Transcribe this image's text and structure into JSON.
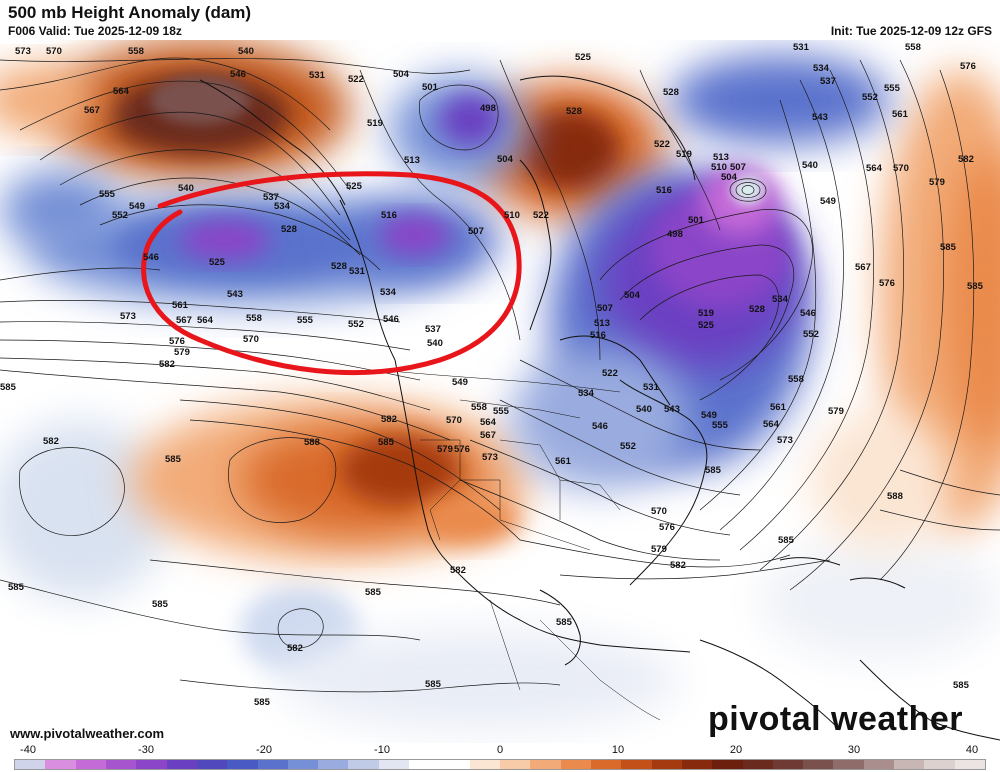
{
  "header": {
    "title": "500 mb Height Anomaly (dam)",
    "valid": "F006 Valid: Tue 2025-12-09 18z",
    "init": "Init: Tue 2025-12-09 12z GFS"
  },
  "footer": {
    "website": "www.pivotalweather.com",
    "logo": "pivotal weather"
  },
  "colorbar": {
    "ticks": [
      "-40",
      "-30",
      "-20",
      "-10",
      "0",
      "10",
      "20",
      "30",
      "40"
    ],
    "colors": [
      "#cfd4ea",
      "#d98ee0",
      "#c46bd8",
      "#a655cf",
      "#8a45c8",
      "#6a3fc2",
      "#5248bd",
      "#4a5ac4",
      "#5a72cc",
      "#7590d6",
      "#9aacdf",
      "#c0cbe8",
      "#e2e6f2",
      "#ffffff",
      "#ffffff",
      "#fbe5d3",
      "#f7cba8",
      "#f2ab78",
      "#ea8a4c",
      "#d96a2c",
      "#c25018",
      "#a53a10",
      "#87290c",
      "#6d1f0e",
      "#6b2a1e",
      "#6e3a33",
      "#7a514d",
      "#8f6c6a",
      "#aa8e8d",
      "#c8b6b5",
      "#ddd1d0",
      "#ebe4e3"
    ]
  },
  "contour_labels": [
    {
      "text": "573"
    },
    {
      "text": "570"
    },
    {
      "text": "558"
    },
    {
      "text": "540"
    },
    {
      "text": "546"
    },
    {
      "text": "531"
    },
    {
      "text": "522"
    },
    {
      "text": "504"
    },
    {
      "text": "501"
    },
    {
      "text": "498"
    },
    {
      "text": "525"
    },
    {
      "text": "528"
    },
    {
      "text": "531"
    },
    {
      "text": "534"
    },
    {
      "text": "537"
    },
    {
      "text": "558"
    },
    {
      "text": "576"
    },
    {
      "text": "564"
    },
    {
      "text": "567"
    },
    {
      "text": "519"
    },
    {
      "text": "513"
    },
    {
      "text": "504"
    },
    {
      "text": "528"
    },
    {
      "text": "522"
    },
    {
      "text": "519"
    },
    {
      "text": "513"
    },
    {
      "text": "510"
    },
    {
      "text": "507"
    },
    {
      "text": "504"
    },
    {
      "text": "540"
    },
    {
      "text": "552"
    },
    {
      "text": "555"
    },
    {
      "text": "561"
    },
    {
      "text": "543"
    },
    {
      "text": "564"
    },
    {
      "text": "570"
    },
    {
      "text": "582"
    },
    {
      "text": "579"
    },
    {
      "text": "555"
    },
    {
      "text": "552"
    },
    {
      "text": "549"
    },
    {
      "text": "540"
    },
    {
      "text": "537"
    },
    {
      "text": "534"
    },
    {
      "text": "525"
    },
    {
      "text": "528"
    },
    {
      "text": "516"
    },
    {
      "text": "507"
    },
    {
      "text": "510"
    },
    {
      "text": "522"
    },
    {
      "text": "516"
    },
    {
      "text": "501"
    },
    {
      "text": "498"
    },
    {
      "text": "549"
    },
    {
      "text": "585"
    },
    {
      "text": "546"
    },
    {
      "text": "525"
    },
    {
      "text": "528"
    },
    {
      "text": "531"
    },
    {
      "text": "534"
    },
    {
      "text": "543"
    },
    {
      "text": "561"
    },
    {
      "text": "567"
    },
    {
      "text": "564"
    },
    {
      "text": "558"
    },
    {
      "text": "555"
    },
    {
      "text": "552"
    },
    {
      "text": "546"
    },
    {
      "text": "537"
    },
    {
      "text": "540"
    },
    {
      "text": "573"
    },
    {
      "text": "576"
    },
    {
      "text": "579"
    },
    {
      "text": "570"
    },
    {
      "text": "582"
    },
    {
      "text": "504"
    },
    {
      "text": "507"
    },
    {
      "text": "513"
    },
    {
      "text": "516"
    },
    {
      "text": "519"
    },
    {
      "text": "525"
    },
    {
      "text": "528"
    },
    {
      "text": "534"
    },
    {
      "text": "546"
    },
    {
      "text": "552"
    },
    {
      "text": "567"
    },
    {
      "text": "576"
    },
    {
      "text": "585"
    },
    {
      "text": "585"
    },
    {
      "text": "549"
    },
    {
      "text": "558"
    },
    {
      "text": "555"
    },
    {
      "text": "564"
    },
    {
      "text": "567"
    },
    {
      "text": "570"
    },
    {
      "text": "573"
    },
    {
      "text": "576"
    },
    {
      "text": "579"
    },
    {
      "text": "582"
    },
    {
      "text": "585"
    },
    {
      "text": "588"
    },
    {
      "text": "582"
    },
    {
      "text": "585"
    },
    {
      "text": "561"
    },
    {
      "text": "546"
    },
    {
      "text": "552"
    },
    {
      "text": "540"
    },
    {
      "text": "543"
    },
    {
      "text": "549"
    },
    {
      "text": "555"
    },
    {
      "text": "564"
    },
    {
      "text": "573"
    },
    {
      "text": "579"
    },
    {
      "text": "558"
    },
    {
      "text": "561"
    },
    {
      "text": "534"
    },
    {
      "text": "531"
    },
    {
      "text": "522"
    },
    {
      "text": "570"
    },
    {
      "text": "576"
    },
    {
      "text": "579"
    },
    {
      "text": "582"
    },
    {
      "text": "585"
    },
    {
      "text": "588"
    },
    {
      "text": "582"
    },
    {
      "text": "585"
    },
    {
      "text": "585"
    },
    {
      "text": "585"
    },
    {
      "text": "582"
    },
    {
      "text": "585"
    },
    {
      "text": "585"
    },
    {
      "text": "585"
    },
    {
      "text": "585"
    },
    {
      "text": "585"
    },
    {
      "text": "567"
    }
  ]
}
